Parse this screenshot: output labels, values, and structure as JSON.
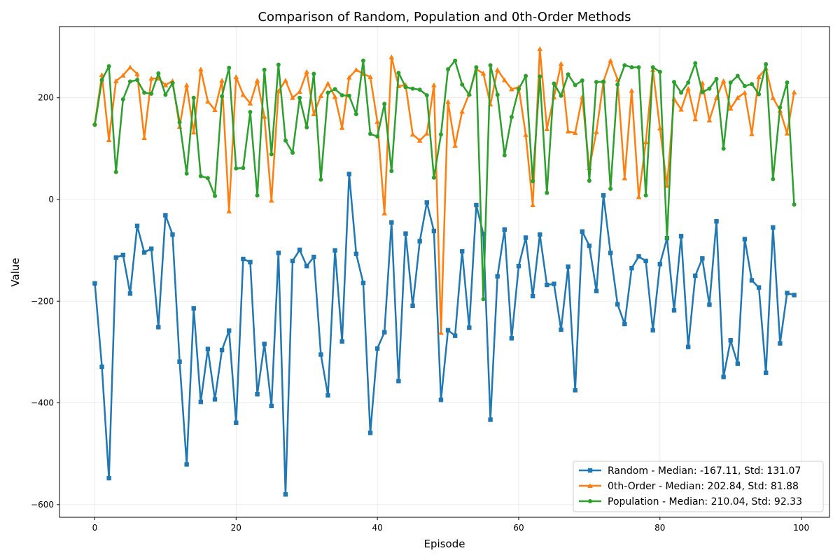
{
  "chart_data": {
    "type": "line",
    "title": "Comparison of Random, Population and 0th-Order Methods",
    "xlabel": "Episode",
    "ylabel": "Value",
    "xlim": [
      -5,
      104
    ],
    "ylim": [
      -625,
      340
    ],
    "xticks": [
      0,
      20,
      40,
      60,
      80,
      100
    ],
    "yticks": [
      -600,
      -400,
      -200,
      0,
      200
    ],
    "grid": true,
    "legend_position": "lower-right",
    "series": [
      {
        "name": "Random - Median: -167.11, Std: 131.07",
        "color": "#1f77b4",
        "marker": "square",
        "values": [
          -165,
          -329,
          -548,
          -114,
          -109,
          -185,
          -52,
          -104,
          -97,
          -251,
          -31,
          -69,
          -319,
          -521,
          -214,
          -398,
          -294,
          -393,
          -296,
          -258,
          -439,
          -117,
          -123,
          -383,
          -284,
          -406,
          -105,
          -580,
          -121,
          -99,
          -131,
          -113,
          -305,
          -385,
          -100,
          -279,
          50,
          -107,
          -164,
          -459,
          -293,
          -261,
          -45,
          -357,
          -67,
          -209,
          -82,
          -6,
          -62,
          -394,
          -257,
          -268,
          -102,
          -252,
          -11,
          -68,
          -433,
          -151,
          -59,
          -273,
          -131,
          -75,
          -190,
          -69,
          -168,
          -166,
          -256,
          -132,
          -375,
          -63,
          -91,
          -180,
          8,
          -105,
          -206,
          -245,
          -135,
          -112,
          -121,
          -257,
          -127,
          -76,
          -218,
          -72,
          -290,
          -150,
          -116,
          -207,
          -43,
          -349,
          -277,
          -323,
          -78,
          -159,
          -173,
          -341,
          -55,
          -283,
          -184,
          -188
        ]
      },
      {
        "name": "0th-Order - Median: 202.84, Std: 81.88",
        "color": "#ff7f0e",
        "marker": "triangle",
        "values": [
          150,
          245,
          117,
          233,
          244,
          260,
          247,
          121,
          238,
          238,
          225,
          233,
          143,
          225,
          132,
          256,
          193,
          176,
          234,
          -23,
          241,
          206,
          189,
          234,
          163,
          -2,
          213,
          234,
          200,
          212,
          251,
          168,
          204,
          228,
          202,
          141,
          240,
          255,
          247,
          241,
          153,
          -27,
          280,
          223,
          225,
          128,
          116,
          130,
          225,
          -262,
          192,
          106,
          173,
          208,
          256,
          248,
          187,
          255,
          235,
          217,
          221,
          127,
          -11,
          296,
          139,
          201,
          267,
          134,
          131,
          201,
          62,
          133,
          232,
          273,
          236,
          42,
          214,
          5,
          113,
          255,
          140,
          27,
          198,
          177,
          218,
          158,
          229,
          156,
          200,
          233,
          179,
          200,
          210,
          129,
          241,
          258,
          200,
          175,
          130,
          211
        ]
      },
      {
        "name": "Population - Median: 210.04, Std: 92.33",
        "color": "#2ca02c",
        "marker": "circle",
        "values": [
          147,
          235,
          262,
          54,
          197,
          232,
          235,
          210,
          208,
          248,
          206,
          229,
          152,
          51,
          200,
          46,
          42,
          7,
          203,
          259,
          61,
          62,
          172,
          8,
          255,
          89,
          265,
          116,
          92,
          200,
          142,
          247,
          39,
          210,
          217,
          205,
          204,
          168,
          273,
          129,
          124,
          188,
          56,
          249,
          221,
          218,
          216,
          205,
          43,
          128,
          256,
          273,
          226,
          206,
          260,
          -196,
          264,
          206,
          87,
          162,
          217,
          243,
          36,
          242,
          13,
          228,
          204,
          246,
          225,
          234,
          37,
          231,
          232,
          21,
          226,
          264,
          260,
          260,
          8,
          260,
          251,
          -76,
          231,
          210,
          230,
          268,
          211,
          218,
          237,
          100,
          230,
          243,
          223,
          227,
          207,
          266,
          40,
          181,
          230,
          -10
        ]
      }
    ]
  }
}
